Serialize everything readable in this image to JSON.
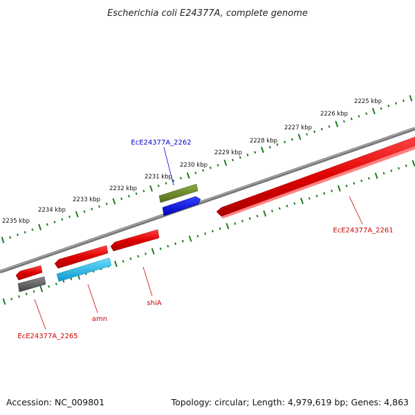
{
  "title": "Escherichia coli E24377A, complete genome",
  "footer": {
    "accession": "Accession: NC_009801",
    "info": "Topology: circular; Length: 4,979,619 bp; Genes: 4,863"
  },
  "ruler": {
    "outer_labels": [
      "2225 kbp",
      "2226 kbp",
      "2227 kbp",
      "2228 kbp",
      "2229 kbp",
      "2230 kbp",
      "2231 kbp",
      "2232 kbp",
      "2233 kbp",
      "2234 kbp",
      "2235 kbp"
    ]
  },
  "genes": [
    {
      "name": "EcE24377A_2261",
      "label": "EcE24377A_2261",
      "color": "#dd0000",
      "strand": "reverse"
    },
    {
      "name": "EcE24377A_2262",
      "label": "EcE24377A_2262",
      "color": "#0000cc",
      "strand": "forward"
    },
    {
      "name": "shiA",
      "label": "shiA",
      "color": "#dd0000",
      "strand": "reverse"
    },
    {
      "name": "amn",
      "label": "amn",
      "color": "#dd0000",
      "strand": "reverse"
    },
    {
      "name": "EcE24377A_2265",
      "label": "EcE24377A_2265",
      "color": "#dd0000",
      "strand": "reverse"
    }
  ],
  "colors": {
    "backbone": "#808080",
    "tick": "#1a7a1a",
    "cds_red": "#ee1111",
    "olive": "#6b8e23",
    "blue": "#0000ee",
    "cyan": "#22bbee",
    "gray_feature": "#666666"
  }
}
